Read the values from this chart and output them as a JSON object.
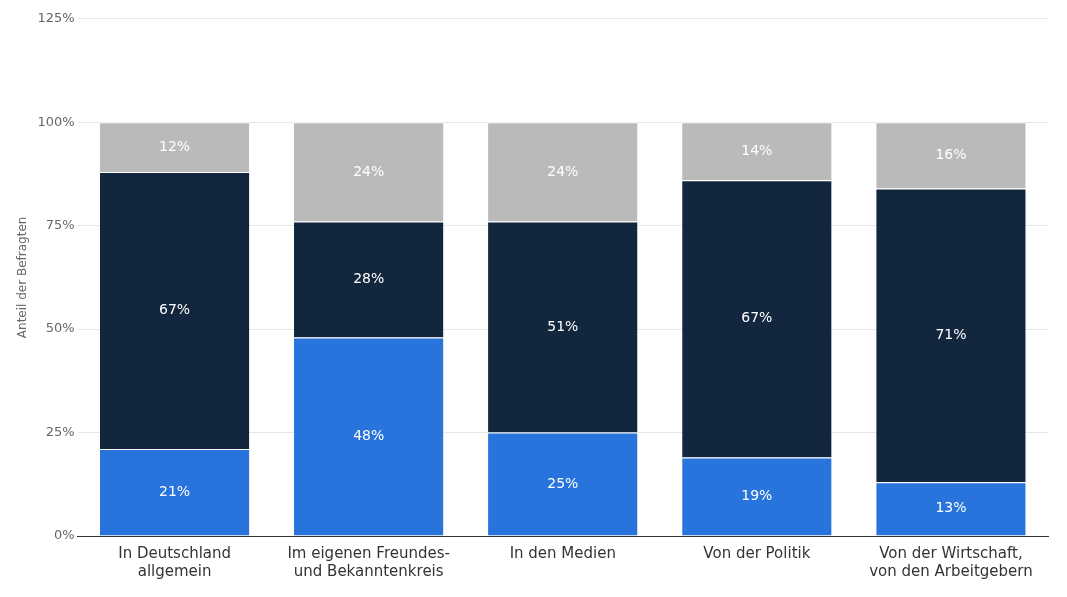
{
  "chart_data": {
    "type": "bar",
    "stacked": true,
    "ylabel": "Anteil der Befragten",
    "categories": [
      "In Deutschland allgemein",
      "Im eigenen Freundes- und Bekanntenkreis",
      "In den Medien",
      "Von der Politik",
      "Von der Wirtschaft, von den Arbeitgebern"
    ],
    "series": [
      {
        "color": "#2874dc",
        "values": [
          21,
          48,
          25,
          19,
          13
        ],
        "value_labels": [
          "21%",
          "48%",
          "25%",
          "19%",
          "13%"
        ]
      },
      {
        "color": "#12263e",
        "values": [
          67,
          28,
          51,
          67,
          71
        ],
        "value_labels": [
          "67%",
          "28%",
          "51%",
          "67%",
          "71%"
        ]
      },
      {
        "color": "#bababa",
        "values": [
          12,
          24,
          24,
          14,
          16
        ],
        "value_labels": [
          "12%",
          "24%",
          "24%",
          "14%",
          "16%"
        ]
      }
    ],
    "ylim": [
      0,
      125
    ],
    "yticks": [
      {
        "value": 0,
        "label": "0%"
      },
      {
        "value": 25,
        "label": "25%"
      },
      {
        "value": 50,
        "label": "50%"
      },
      {
        "value": 75,
        "label": "75%"
      },
      {
        "value": 100,
        "label": "100%"
      },
      {
        "value": 125,
        "label": "125%"
      }
    ],
    "grid": "y",
    "legend": false
  }
}
